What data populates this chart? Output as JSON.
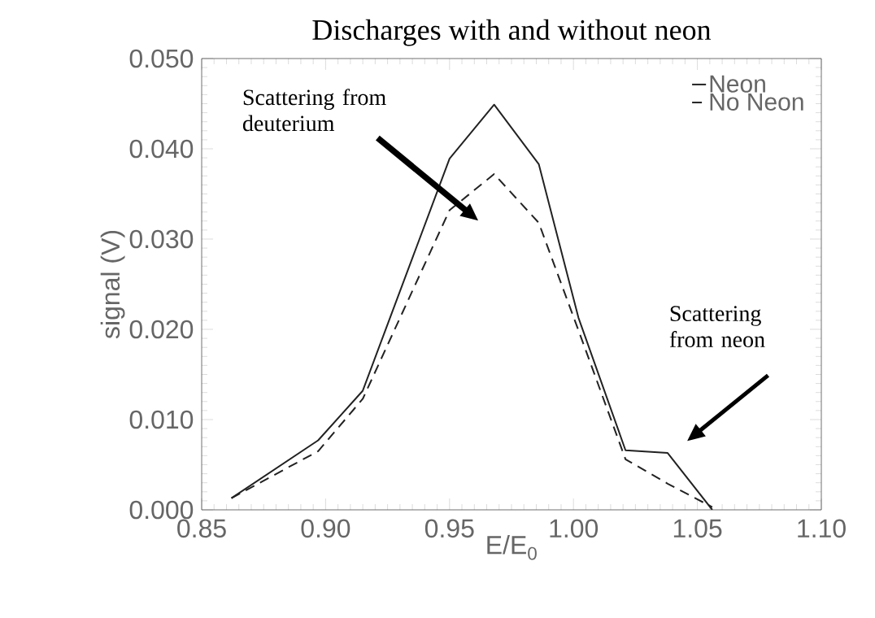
{
  "chart_data": {
    "type": "line",
    "title": "Discharges with and without neon",
    "xlabel": "E/E$_{0}$",
    "ylabel": "signal (V)",
    "xlim": [
      0.85,
      1.1
    ],
    "ylim": [
      0,
      0.05
    ],
    "xticks": [
      {
        "value": 0.85,
        "label": "0.85"
      },
      {
        "value": 0.9,
        "label": "0.90"
      },
      {
        "value": 0.95,
        "label": "0.95"
      },
      {
        "value": 1.0,
        "label": "1.00"
      },
      {
        "value": 1.05,
        "label": "1.05"
      },
      {
        "value": 1.1,
        "label": "1.10"
      }
    ],
    "yticks": [
      {
        "value": 0,
        "label": "0.000"
      },
      {
        "value": 0.01,
        "label": "0.010"
      },
      {
        "value": 0.02,
        "label": "0.020"
      },
      {
        "value": 0.03,
        "label": "0.030"
      },
      {
        "value": 0.04,
        "label": "0.040"
      },
      {
        "value": 0.05,
        "label": "0.050"
      }
    ],
    "x": [
      0.862,
      0.897,
      0.915,
      0.95,
      0.968,
      0.986,
      1.002,
      1.021,
      1.038,
      1.056
    ],
    "series": [
      {
        "name": "Neon",
        "color": "#222222",
        "line_style": "solid",
        "values": [
          0.0013,
          0.0077,
          0.0132,
          0.0389,
          0.0449,
          0.0383,
          0.0213,
          0.0066,
          0.0063,
          0.0
        ]
      },
      {
        "name": "No Neon",
        "color": "#222222",
        "line_style": "dashed",
        "values": [
          0.0013,
          0.0065,
          0.0123,
          0.0332,
          0.0372,
          0.0318,
          0.0199,
          0.0056,
          0.0029,
          0.0003
        ]
      }
    ],
    "legend": "top right",
    "grid": false,
    "annotations": [
      "Scattering from deuterium",
      "Scattering from neon"
    ]
  }
}
